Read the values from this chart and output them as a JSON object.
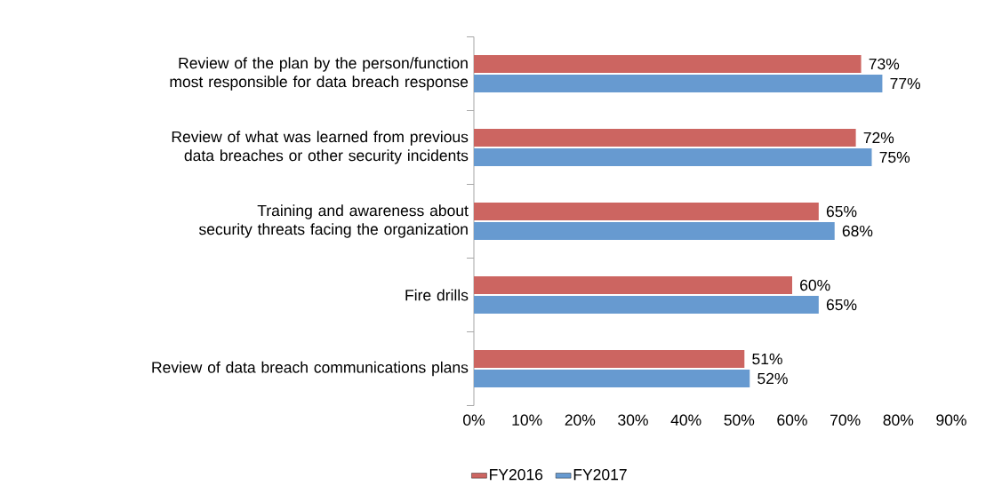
{
  "chart_data": {
    "type": "bar",
    "orientation": "horizontal",
    "categories": [
      "Review of the plan by the person/function most responsible for data breach response",
      "Review of what was learned from previous data breaches or other security incidents",
      "Training and awareness about security threats facing the organization",
      "Fire drills",
      "Review of data breach communications plans"
    ],
    "series": [
      {
        "name": "FY2016",
        "color": "#cc6561",
        "values": [
          73,
          72,
          65,
          60,
          51
        ],
        "value_labels": [
          "73%",
          "72%",
          "65%",
          "60%",
          "51%"
        ]
      },
      {
        "name": "FY2017",
        "color": "#679ad0",
        "values": [
          77,
          75,
          68,
          65,
          52
        ],
        "value_labels": [
          "77%",
          "75%",
          "68%",
          "65%",
          "52%"
        ]
      }
    ],
    "xlim": [
      0,
      90
    ],
    "xticks": [
      {
        "value": 0,
        "label": "0%"
      },
      {
        "value": 10,
        "label": "10%"
      },
      {
        "value": 20,
        "label": "20%"
      },
      {
        "value": 30,
        "label": "30%"
      },
      {
        "value": 40,
        "label": "40%"
      },
      {
        "value": 50,
        "label": "50%"
      },
      {
        "value": 60,
        "label": "60%"
      },
      {
        "value": 70,
        "label": "70%"
      },
      {
        "value": 80,
        "label": "80%"
      },
      {
        "value": 90,
        "label": "90%"
      }
    ],
    "grid": false,
    "legend": "bottom"
  }
}
